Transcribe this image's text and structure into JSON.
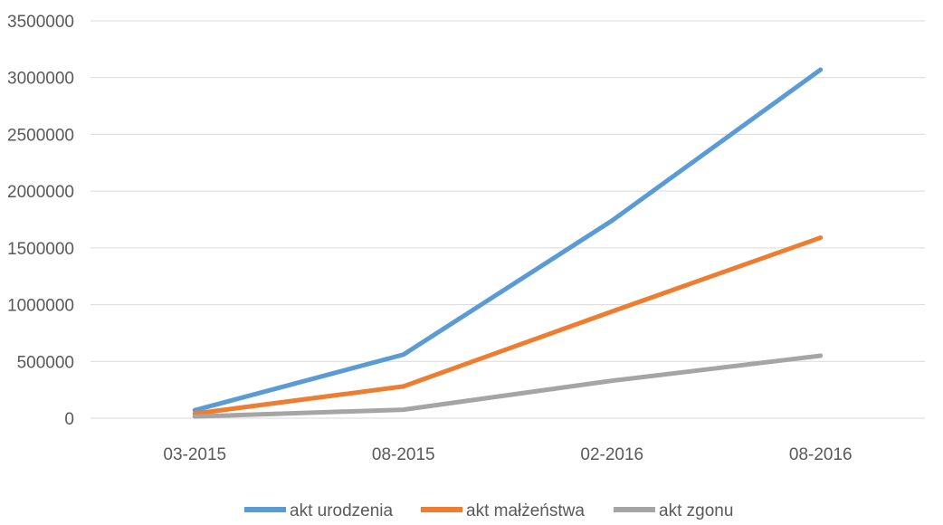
{
  "chart_data": {
    "type": "line",
    "categories": [
      "03-2015",
      "08-2015",
      "02-2016",
      "08-2016"
    ],
    "series": [
      {
        "name": "akt urodzenia",
        "color": "#5b9bd5",
        "values": [
          70000,
          560000,
          1740000,
          3070000
        ]
      },
      {
        "name": "akt małżeństwa",
        "color": "#ed7d31",
        "values": [
          40000,
          280000,
          940000,
          1590000
        ]
      },
      {
        "name": "akt zgonu",
        "color": "#a5a5a5",
        "values": [
          15000,
          75000,
          330000,
          550000
        ]
      }
    ],
    "ylim": [
      0,
      3500000
    ],
    "yticks": [
      "0",
      "500000",
      "1000000",
      "1500000",
      "2000000",
      "2500000",
      "3000000",
      "3500000"
    ],
    "ytick_values": [
      0,
      500000,
      1000000,
      1500000,
      2000000,
      2500000,
      3000000,
      3500000
    ],
    "grid": true,
    "legend_position": "bottom"
  }
}
